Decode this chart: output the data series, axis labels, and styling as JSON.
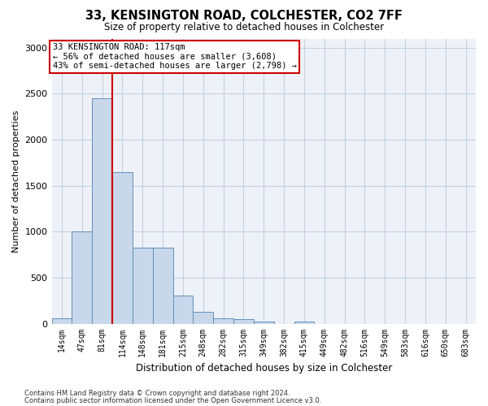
{
  "title1": "33, KENSINGTON ROAD, COLCHESTER, CO2 7FF",
  "title2": "Size of property relative to detached houses in Colchester",
  "xlabel": "Distribution of detached houses by size in Colchester",
  "ylabel": "Number of detached properties",
  "bar_labels": [
    "14sqm",
    "47sqm",
    "81sqm",
    "114sqm",
    "148sqm",
    "181sqm",
    "215sqm",
    "248sqm",
    "282sqm",
    "315sqm",
    "349sqm",
    "382sqm",
    "415sqm",
    "449sqm",
    "482sqm",
    "516sqm",
    "549sqm",
    "583sqm",
    "616sqm",
    "650sqm",
    "683sqm"
  ],
  "bar_values": [
    60,
    1000,
    2450,
    1650,
    830,
    830,
    305,
    125,
    55,
    45,
    20,
    0,
    20,
    0,
    0,
    0,
    0,
    0,
    0,
    0,
    0
  ],
  "bar_color": "#c8d8ea",
  "bar_edge_color": "#6090bb",
  "bar_edge_width": 0.7,
  "grid_color": "#c5cfe0",
  "background_color": "#eef2f8",
  "red_line_color": "#cc0000",
  "red_line_x": 2.5,
  "annotation_line1": "33 KENSINGTON ROAD: 117sqm",
  "annotation_line2": "← 56% of detached houses are smaller (3,608)",
  "annotation_line3": "43% of semi-detached houses are larger (2,798) →",
  "footnote1": "Contains HM Land Registry data © Crown copyright and database right 2024.",
  "footnote2": "Contains public sector information licensed under the Open Government Licence v3.0.",
  "ylim": [
    0,
    3100
  ],
  "yticks": [
    0,
    500,
    1000,
    1500,
    2000,
    2500,
    3000
  ]
}
